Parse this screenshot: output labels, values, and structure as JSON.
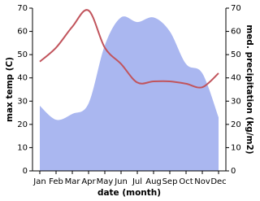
{
  "chart_data": {
    "type": "line-area",
    "x_label": "date (month)",
    "y_label": "max temp (C)",
    "y2_label": "med. precipitation (kg/m2)",
    "categories": [
      "Jan",
      "Feb",
      "Mar",
      "Apr",
      "May",
      "Jun",
      "Jul",
      "Aug",
      "Sep",
      "Oct",
      "Nov",
      "Dec"
    ],
    "ylim": [
      0,
      70
    ],
    "yticks": [
      0,
      10,
      20,
      30,
      40,
      50,
      60,
      70
    ],
    "y2lim": [
      0,
      70
    ],
    "y2ticks": [
      0,
      10,
      20,
      30,
      40,
      50,
      60,
      70
    ],
    "series": [
      {
        "name": "med. precipitation",
        "type": "area",
        "axis": "y2",
        "color": "#aab7f0",
        "values": [
          28,
          22,
          24.5,
          29,
          54,
          66,
          64,
          66,
          60,
          46,
          42,
          23
        ]
      },
      {
        "name": "max temp",
        "type": "line",
        "color": "#c1545c",
        "values": [
          47,
          53,
          62,
          69,
          53,
          46,
          38,
          38.5,
          38.5,
          37.5,
          36,
          42
        ]
      }
    ]
  }
}
